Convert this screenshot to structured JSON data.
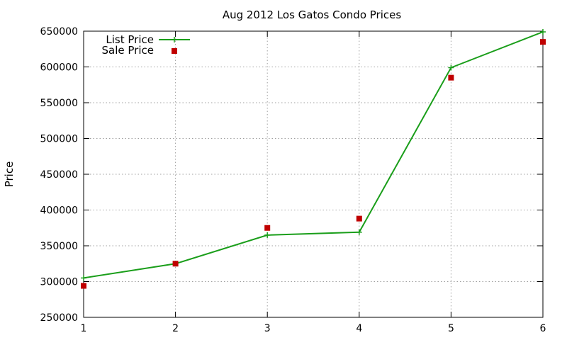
{
  "chart_data": {
    "type": "line",
    "title": "Aug 2012 Los Gatos Condo Prices",
    "xlabel": "",
    "ylabel": "Price",
    "x": [
      1,
      2,
      3,
      4,
      5,
      6
    ],
    "x_ticks": [
      "1",
      "2",
      "3",
      "4",
      "5",
      "6"
    ],
    "xlim": [
      1,
      6
    ],
    "ylim": [
      250000,
      650000
    ],
    "y_ticks": [
      "250000",
      "300000",
      "350000",
      "400000",
      "450000",
      "500000",
      "550000",
      "600000",
      "650000"
    ],
    "y_tick_values": [
      250000,
      300000,
      350000,
      400000,
      450000,
      500000,
      550000,
      600000,
      650000
    ],
    "grid": true,
    "legend_position": "top-left",
    "series": [
      {
        "name": "List Price",
        "style": "lines+points",
        "marker": "plus",
        "color": "#1a9e1a",
        "values": [
          305000,
          325000,
          365000,
          369000,
          599000,
          649000
        ]
      },
      {
        "name": "Sale Price",
        "style": "points",
        "marker": "filled-square",
        "color": "#c00000",
        "values": [
          294000,
          325000,
          375000,
          388000,
          585000,
          635000
        ]
      }
    ]
  }
}
